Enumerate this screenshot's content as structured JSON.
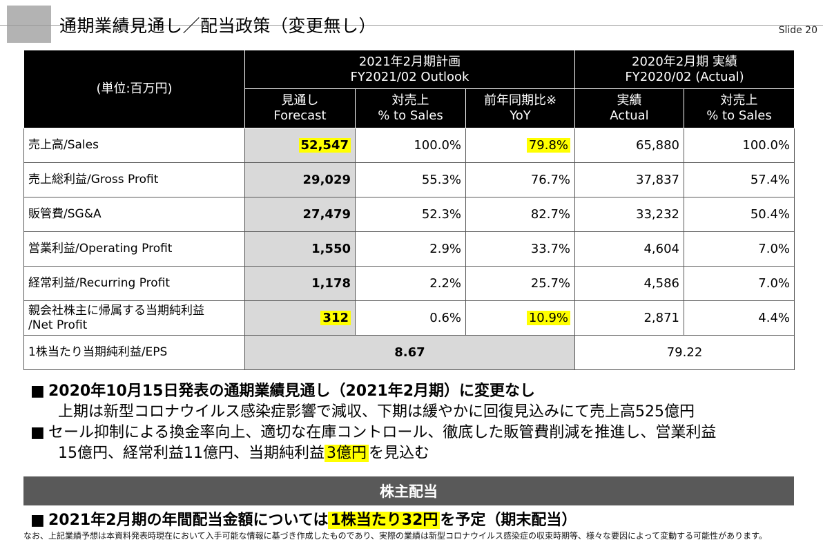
{
  "header": {
    "title": "通期業績見通し／配当政策（変更無し）",
    "slide_label": "Slide  20"
  },
  "table": {
    "unit_label": "(単位:百万円)",
    "group_outlook": [
      "2021年2月期計画",
      "FY2021/02 Outlook"
    ],
    "group_actual": [
      "2020年2月期  実績",
      "FY2020/02 (Actual)"
    ],
    "columns": [
      [
        "見通し",
        "Forecast"
      ],
      [
        "対売上",
        "% to Sales"
      ],
      [
        "前年同期比※",
        "YoY"
      ],
      [
        "実績",
        "Actual"
      ],
      [
        "対売上",
        "% to Sales"
      ]
    ],
    "rows": [
      {
        "label": [
          "売上高/Sales"
        ],
        "forecast": "52,547",
        "pct_sales": "100.0%",
        "yoy": "79.8%",
        "actual": "65,880",
        "actual_pct": "100.0%"
      },
      {
        "label": [
          "売上総利益/Gross Profit"
        ],
        "forecast": "29,029",
        "pct_sales": "55.3%",
        "yoy": "76.7%",
        "actual": "37,837",
        "actual_pct": "57.4%"
      },
      {
        "label": [
          "販管費/SG&A"
        ],
        "forecast": "27,479",
        "pct_sales": "52.3%",
        "yoy": "82.7%",
        "actual": "33,232",
        "actual_pct": "50.4%"
      },
      {
        "label": [
          "営業利益/Operating Profit"
        ],
        "forecast": "1,550",
        "pct_sales": "2.9%",
        "yoy": "33.7%",
        "actual": "4,604",
        "actual_pct": "7.0%"
      },
      {
        "label": [
          "経常利益/Recurring Profit"
        ],
        "forecast": "1,178",
        "pct_sales": "2.2%",
        "yoy": "25.7%",
        "actual": "4,586",
        "actual_pct": "7.0%"
      },
      {
        "label": [
          "親会社株主に帰属する当期純利益",
          "/Net Profit"
        ],
        "forecast": "312",
        "pct_sales": "0.6%",
        "yoy": "10.9%",
        "actual": "2,871",
        "actual_pct": "4.4%"
      }
    ],
    "eps_row": {
      "label": "1株当たり当期純利益/EPS",
      "forecast": "8.67",
      "actual": "79.22"
    }
  },
  "bullets": {
    "b1_bold": "2020年10月15日発表の通期業績見通し（2021年2月期）に変更なし",
    "b1_sub": "上期は新型コロナウイルス感染症影響で減収、下期は緩やかに回復見込みにて売上高525億円",
    "b2_line1": "セール抑制による換金率向上、適切な在庫コントロール、徹底した販管費削減を推進し、営業利益",
    "b2_line2_pre": "15億円、経常利益11億円、当期純利益",
    "b2_line2_hl": "3億円",
    "b2_line2_post": "を見込む"
  },
  "dividend": {
    "section_title": "株主配当",
    "line_pre": "2021年2月期の年間配当金額については",
    "line_hl": "1株当たり32円",
    "line_post": "を予定（期末配当）"
  },
  "note": "なお、上記業績予想は本資料発表時現在において入手可能な情報に基づき作成したものであり、実際の業績は新型コロナウイルス感染症の収束時期等、様々な要因によって変動する可能性があります。",
  "bullet_symbol": "■",
  "colors": {
    "highlight": "#ffff00",
    "header_bg": "#000000",
    "forecast_bg": "#d9d9d9",
    "section_bar": "#595959"
  }
}
